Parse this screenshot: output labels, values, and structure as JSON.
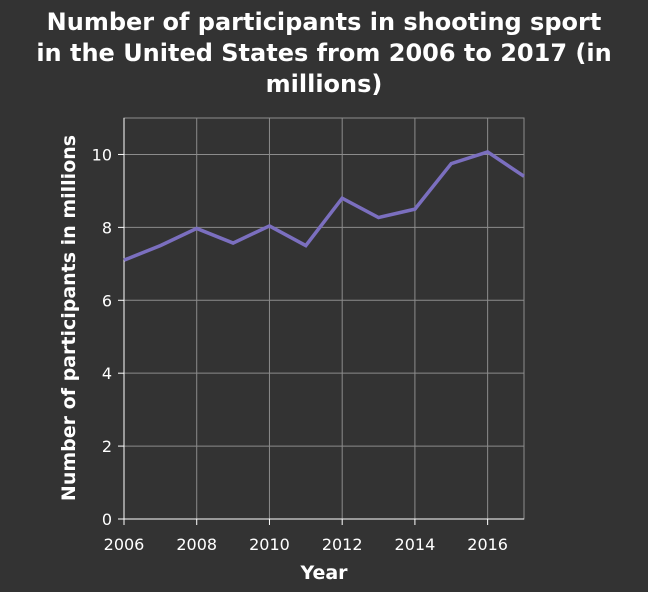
{
  "chart_data": {
    "type": "line",
    "title_lines": [
      "Number of participants in shooting sport",
      "in the United States from 2006 to 2017 (in",
      "millions)"
    ],
    "xlabel": "Year",
    "ylabel": "Number of participants in millions",
    "x": [
      2006,
      2007,
      2008,
      2009,
      2010,
      2011,
      2012,
      2013,
      2014,
      2015,
      2016,
      2017
    ],
    "series": [
      {
        "values": [
          7.1,
          7.5,
          7.97,
          7.57,
          8.04,
          7.5,
          8.8,
          8.27,
          8.5,
          9.75,
          10.07,
          9.4
        ],
        "color": "#7b6fbf"
      }
    ],
    "xlim": [
      2006,
      2017
    ],
    "ylim": [
      0,
      11
    ],
    "xticks": [
      2006,
      2008,
      2010,
      2012,
      2014,
      2016
    ],
    "xtick_labels": [
      "2006",
      "2008",
      "2010",
      "2012",
      "2014",
      "2016"
    ],
    "yticks": [
      0,
      2,
      4,
      6,
      8,
      10
    ],
    "ytick_labels": [
      "0",
      "2",
      "4",
      "6",
      "8",
      "10"
    ],
    "grid": true,
    "background": "#333333",
    "plot_background": "#333333"
  }
}
